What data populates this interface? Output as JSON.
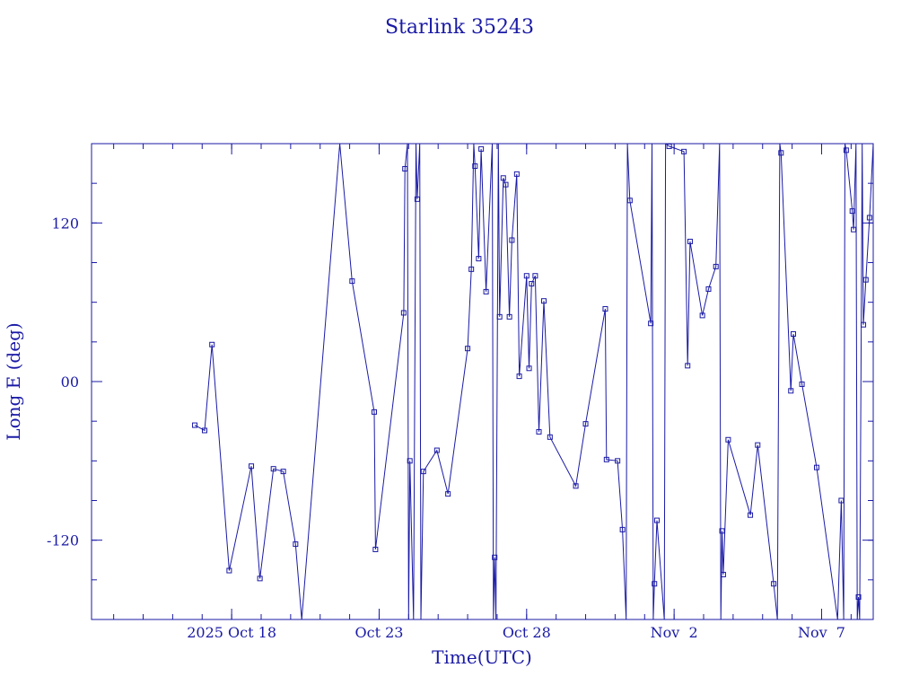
{
  "chart_data": {
    "type": "line",
    "title": "Starlink 35243",
    "xlabel": "Time(UTC)",
    "ylabel": "Long E (deg)",
    "ylim": [
      -180,
      180
    ],
    "xlim": [
      "2025-10-13T06:00",
      "2025-11-08T18:00"
    ],
    "x_ticks": [
      {
        "date": "2025-10-18",
        "label": "2025 Oct 18"
      },
      {
        "date": "2025-10-23",
        "label": "Oct 23"
      },
      {
        "date": "2025-10-28",
        "label": "Oct 28"
      },
      {
        "date": "2025-11-02",
        "label": "Nov  2"
      },
      {
        "date": "2025-11-07",
        "label": "Nov  7"
      }
    ],
    "y_ticks": [
      {
        "value": 120,
        "label": "120"
      },
      {
        "value": 0,
        "label": "00"
      },
      {
        "value": -120,
        "label": "-120"
      }
    ],
    "grid": false,
    "line_color": "#1a1aa6",
    "series": [
      {
        "values": [
          [
            "2025-10-16T18:00",
            -33
          ],
          [
            "2025-10-17T02:00",
            -37
          ],
          [
            "2025-10-17T08:00",
            28
          ],
          [
            "2025-10-17T22:00",
            -143
          ],
          [
            "2025-10-18T16:00",
            -64
          ],
          [
            "2025-10-18T23:00",
            -149
          ],
          [
            "2025-10-19T10:00",
            -66
          ],
          [
            "2025-10-19T18:00",
            -68
          ],
          [
            "2025-10-20T04:00",
            -123
          ],
          [
            "2025-10-20T09:00",
            -180
          ],
          [
            "2025-10-21T16:00",
            180
          ],
          [
            "2025-10-22T02:00",
            76
          ],
          [
            "2025-10-22T20:00",
            -23
          ],
          [
            "2025-10-22T21:00",
            -127
          ],
          [
            "2025-10-23T20:00",
            52
          ],
          [
            "2025-10-23T21:00",
            161
          ],
          [
            "2025-10-23T23:00",
            180
          ],
          [
            "2025-10-24T00:00",
            -180
          ],
          [
            "2025-10-24T01:00",
            -60
          ],
          [
            "2025-10-24T04:00",
            -180
          ],
          [
            "2025-10-24T06:00",
            180
          ],
          [
            "2025-10-24T07:00",
            138
          ],
          [
            "2025-10-24T09:00",
            180
          ],
          [
            "2025-10-24T10:00",
            -180
          ],
          [
            "2025-10-24T12:00",
            -68
          ],
          [
            "2025-10-24T23:00",
            -52
          ],
          [
            "2025-10-25T08:00",
            -85
          ],
          [
            "2025-10-26T00:00",
            25
          ],
          [
            "2025-10-26T03:00",
            85
          ],
          [
            "2025-10-26T05:00",
            180
          ],
          [
            "2025-10-26T06:00",
            163
          ],
          [
            "2025-10-26T09:00",
            93
          ],
          [
            "2025-10-26T11:00",
            176
          ],
          [
            "2025-10-26T15:00",
            68
          ],
          [
            "2025-10-26T20:00",
            180
          ],
          [
            "2025-10-26T21:00",
            -180
          ],
          [
            "2025-10-26T22:00",
            -133
          ],
          [
            "2025-10-26T23:00",
            -180
          ],
          [
            "2025-10-27T01:00",
            180
          ],
          [
            "2025-10-27T02:00",
            49
          ],
          [
            "2025-10-27T05:00",
            154
          ],
          [
            "2025-10-27T07:00",
            149
          ],
          [
            "2025-10-27T10:00",
            49
          ],
          [
            "2025-10-27T12:00",
            107
          ],
          [
            "2025-10-27T16:00",
            157
          ],
          [
            "2025-10-27T18:00",
            4
          ],
          [
            "2025-10-28T00:00",
            80
          ],
          [
            "2025-10-28T02:00",
            10
          ],
          [
            "2025-10-28T04:00",
            74
          ],
          [
            "2025-10-28T07:00",
            80
          ],
          [
            "2025-10-28T10:00",
            -38
          ],
          [
            "2025-10-28T14:00",
            61
          ],
          [
            "2025-10-28T19:00",
            -42
          ],
          [
            "2025-10-29T16:00",
            -79
          ],
          [
            "2025-10-30T00:00",
            -32
          ],
          [
            "2025-10-30T16:00",
            55
          ],
          [
            "2025-10-30T17:00",
            -59
          ],
          [
            "2025-10-31T02:00",
            -60
          ],
          [
            "2025-10-31T06:00",
            -112
          ],
          [
            "2025-10-31T09:00",
            -180
          ],
          [
            "2025-10-31T10:00",
            180
          ],
          [
            "2025-10-31T12:00",
            137
          ],
          [
            "2025-11-01T05:00",
            44
          ],
          [
            "2025-11-01T06:00",
            180
          ],
          [
            "2025-11-01T07:00",
            -180
          ],
          [
            "2025-11-01T08:00",
            -153
          ],
          [
            "2025-11-01T10:00",
            -105
          ],
          [
            "2025-11-01T16:00",
            -180
          ],
          [
            "2025-11-01T17:00",
            180
          ],
          [
            "2025-11-01T20:00",
            178
          ],
          [
            "2025-11-02T08:00",
            174
          ],
          [
            "2025-11-02T11:00",
            12
          ],
          [
            "2025-11-02T13:00",
            106
          ],
          [
            "2025-11-02T23:00",
            50
          ],
          [
            "2025-11-03T04:00",
            70
          ],
          [
            "2025-11-03T10:00",
            87
          ],
          [
            "2025-11-03T13:00",
            180
          ],
          [
            "2025-11-03T14:00",
            -180
          ],
          [
            "2025-11-03T15:00",
            -113
          ],
          [
            "2025-11-03T16:00",
            -146
          ],
          [
            "2025-11-03T20:00",
            -44
          ],
          [
            "2025-11-04T14:00",
            -101
          ],
          [
            "2025-11-04T20:00",
            -48
          ],
          [
            "2025-11-05T09:00",
            -153
          ],
          [
            "2025-11-05T12:00",
            -180
          ],
          [
            "2025-11-05T14:00",
            180
          ],
          [
            "2025-11-05T15:00",
            173
          ],
          [
            "2025-11-05T23:00",
            -7
          ],
          [
            "2025-11-06T01:00",
            36
          ],
          [
            "2025-11-06T08:00",
            -2
          ],
          [
            "2025-11-06T20:00",
            -65
          ],
          [
            "2025-11-07T13:00",
            -180
          ],
          [
            "2025-11-07T16:00",
            -90
          ],
          [
            "2025-11-07T18:00",
            -180
          ],
          [
            "2025-11-07T19:00",
            180
          ],
          [
            "2025-11-07T20:00",
            175
          ],
          [
            "2025-11-08T01:00",
            129
          ],
          [
            "2025-11-08T02:00",
            115
          ],
          [
            "2025-11-08T04:00",
            180
          ],
          [
            "2025-11-08T05:00",
            -180
          ],
          [
            "2025-11-08T06:00",
            -163
          ],
          [
            "2025-11-08T07:00",
            -180
          ],
          [
            "2025-11-08T09:00",
            180
          ],
          [
            "2025-11-08T10:00",
            43
          ],
          [
            "2025-11-08T12:00",
            77
          ],
          [
            "2025-11-08T15:00",
            124
          ],
          [
            "2025-11-08T18:00",
            180
          ]
        ]
      }
    ]
  }
}
